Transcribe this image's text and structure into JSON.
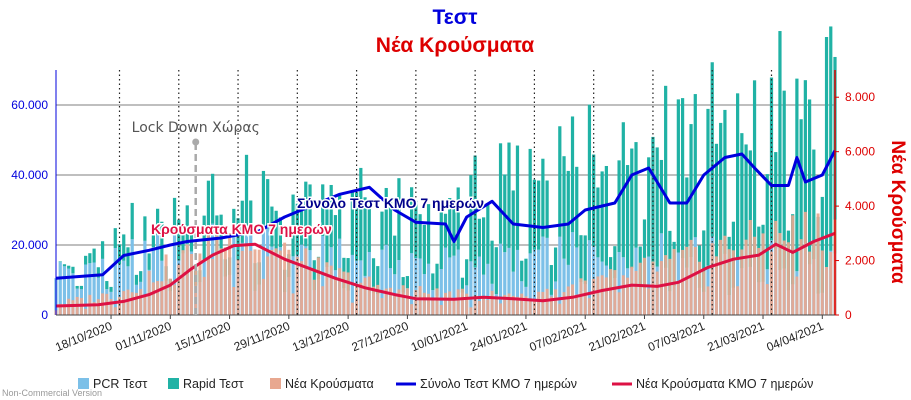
{
  "credit": "Non-Commercial Version",
  "chart_data": {
    "type": "bar",
    "title": "Τεστ",
    "subtitle": "Νέα Κρούσματα",
    "title_color": "#0000dd",
    "subtitle_color": "#dd0000",
    "y_left_label": "",
    "y_right_label": "Νέα Κρούσματα",
    "y_left_color": "#0000dd",
    "y_right_color": "#dd0000",
    "ylim_left": [
      0,
      70000
    ],
    "ylim_right": [
      0,
      9000
    ],
    "y_left_ticks": [
      {
        "value": 0,
        "label": "0"
      },
      {
        "value": 20000,
        "label": "20.000"
      },
      {
        "value": 40000,
        "label": "40.000"
      },
      {
        "value": 60000,
        "label": "60.000"
      }
    ],
    "y_right_ticks": [
      {
        "value": 0,
        "label": "0"
      },
      {
        "value": 2000,
        "label": "2.000"
      },
      {
        "value": 4000,
        "label": "4.000"
      },
      {
        "value": 6000,
        "label": "6.000"
      },
      {
        "value": 8000,
        "label": "8.000"
      }
    ],
    "x_start": "2020-10-05",
    "x_end": "2021-04-07",
    "x_ticks": [
      "18/10/2020",
      "01/11/2020",
      "15/11/2020",
      "29/11/2020",
      "13/12/2020",
      "27/12/2020",
      "10/01/2021",
      "24/01/2021",
      "07/02/2021",
      "21/02/2021",
      "07/03/2021",
      "21/03/2021",
      "04/04/2021"
    ],
    "x_tick_dates": [
      "2020-10-18",
      "2020-11-01",
      "2020-11-15",
      "2020-11-29",
      "2020-12-13",
      "2020-12-27",
      "2021-01-10",
      "2021-01-24",
      "2021-02-07",
      "2021-02-21",
      "2021-03-07",
      "2021-03-21",
      "2021-04-04"
    ],
    "vertical_markers": [
      "2020-10-20",
      "2020-11-03",
      "2020-11-17",
      "2020-12-01",
      "2020-12-15",
      "2020-12-29",
      "2021-01-12",
      "2021-01-26",
      "2021-02-09",
      "2021-02-23",
      "2021-03-09",
      "2021-03-23"
    ],
    "annotations": [
      {
        "text": "Lock Down Χώρας",
        "date": "2020-11-07",
        "color": "#555555"
      },
      {
        "text": "Σύνολο Τεστ ΚΜΟ 7 ημερών",
        "color": "#00008b"
      },
      {
        "text": "Κρούσματα ΚΜΟ 7 ημερών",
        "color": "#dd1144"
      }
    ],
    "series": [
      {
        "name": "PCR Τεστ",
        "kind": "bar",
        "axis": "left",
        "color": "#7cc0e8",
        "anchors": [
          [
            "2020-10-05",
            13000
          ],
          [
            "2020-10-20",
            16000
          ],
          [
            "2020-11-01",
            19000
          ],
          [
            "2020-11-15",
            21000
          ],
          [
            "2020-12-01",
            19000
          ],
          [
            "2020-12-15",
            16000
          ],
          [
            "2021-01-01",
            15000
          ],
          [
            "2021-01-15",
            16000
          ],
          [
            "2021-02-01",
            18000
          ],
          [
            "2021-02-15",
            19000
          ],
          [
            "2021-03-01",
            18000
          ],
          [
            "2021-03-15",
            17000
          ],
          [
            "2021-04-07",
            16000
          ]
        ]
      },
      {
        "name": "Rapid Τεστ",
        "kind": "bar",
        "axis": "left",
        "color": "#20b2a5",
        "anchors": [
          [
            "2020-10-05",
            0
          ],
          [
            "2020-10-20",
            5000
          ],
          [
            "2020-11-01",
            9000
          ],
          [
            "2020-11-15",
            12000
          ],
          [
            "2020-12-01",
            13000
          ],
          [
            "2020-12-15",
            17000
          ],
          [
            "2021-01-01",
            12000
          ],
          [
            "2021-01-15",
            20000
          ],
          [
            "2021-02-01",
            25000
          ],
          [
            "2021-02-15",
            33000
          ],
          [
            "2021-03-01",
            37000
          ],
          [
            "2021-03-15",
            35000
          ],
          [
            "2021-04-07",
            47000
          ]
        ]
      },
      {
        "name": "Νέα Κρούσματα",
        "kind": "bar",
        "axis": "right",
        "color": "#e8a890",
        "anchors": [
          [
            "2020-10-05",
            400
          ],
          [
            "2020-10-20",
            800
          ],
          [
            "2020-11-01",
            1800
          ],
          [
            "2020-11-10",
            2600
          ],
          [
            "2020-11-18",
            2800
          ],
          [
            "2020-12-01",
            2000
          ],
          [
            "2020-12-15",
            1200
          ],
          [
            "2021-01-01",
            800
          ],
          [
            "2021-01-15",
            700
          ],
          [
            "2021-02-01",
            900
          ],
          [
            "2021-02-15",
            1400
          ],
          [
            "2021-03-01",
            2000
          ],
          [
            "2021-03-15",
            2600
          ],
          [
            "2021-04-07",
            3300
          ]
        ]
      },
      {
        "name": "Σύνολο Τεστ ΚΜΟ 7 ημερών",
        "kind": "line",
        "axis": "left",
        "color": "#0000dd",
        "points": [
          [
            "2020-10-05",
            10500
          ],
          [
            "2020-10-16",
            11500
          ],
          [
            "2020-10-21",
            17000
          ],
          [
            "2020-10-27",
            18500
          ],
          [
            "2020-11-01",
            20000
          ],
          [
            "2020-11-05",
            21000
          ],
          [
            "2020-11-13",
            22000
          ],
          [
            "2020-11-22",
            24000
          ],
          [
            "2020-11-28",
            28000
          ],
          [
            "2020-12-04",
            31000
          ],
          [
            "2020-12-11",
            34500
          ],
          [
            "2020-12-18",
            36500
          ],
          [
            "2020-12-24",
            30000
          ],
          [
            "2020-12-29",
            26500
          ],
          [
            "2021-01-05",
            26000
          ],
          [
            "2021-01-07",
            21000
          ],
          [
            "2021-01-10",
            28000
          ],
          [
            "2021-01-16",
            32500
          ],
          [
            "2021-01-21",
            26000
          ],
          [
            "2021-01-28",
            25000
          ],
          [
            "2021-02-03",
            26000
          ],
          [
            "2021-02-07",
            30000
          ],
          [
            "2021-02-14",
            32000
          ],
          [
            "2021-02-18",
            40000
          ],
          [
            "2021-02-22",
            42000
          ],
          [
            "2021-02-27",
            32000
          ],
          [
            "2021-03-03",
            32000
          ],
          [
            "2021-03-07",
            40000
          ],
          [
            "2021-03-12",
            45000
          ],
          [
            "2021-03-16",
            46000
          ],
          [
            "2021-03-19",
            42000
          ],
          [
            "2021-03-23",
            37000
          ],
          [
            "2021-03-27",
            37000
          ],
          [
            "2021-03-29",
            45000
          ],
          [
            "2021-03-31",
            38000
          ],
          [
            "2021-04-04",
            40000
          ],
          [
            "2021-04-07",
            47000
          ]
        ]
      },
      {
        "name": "Νέα Κρούσματα ΚΜΟ 7 ημερών",
        "kind": "line",
        "axis": "right",
        "color": "#dd1144",
        "points": [
          [
            "2020-10-05",
            330
          ],
          [
            "2020-10-15",
            380
          ],
          [
            "2020-10-21",
            500
          ],
          [
            "2020-10-27",
            750
          ],
          [
            "2020-11-01",
            1100
          ],
          [
            "2020-11-06",
            1700
          ],
          [
            "2020-11-11",
            2200
          ],
          [
            "2020-11-16",
            2550
          ],
          [
            "2020-11-21",
            2600
          ],
          [
            "2020-11-28",
            2050
          ],
          [
            "2020-12-04",
            1700
          ],
          [
            "2020-12-10",
            1350
          ],
          [
            "2020-12-17",
            1000
          ],
          [
            "2020-12-24",
            750
          ],
          [
            "2020-12-29",
            600
          ],
          [
            "2021-01-07",
            580
          ],
          [
            "2021-01-14",
            650
          ],
          [
            "2021-01-21",
            600
          ],
          [
            "2021-01-28",
            520
          ],
          [
            "2021-02-04",
            650
          ],
          [
            "2021-02-11",
            900
          ],
          [
            "2021-02-18",
            1100
          ],
          [
            "2021-02-24",
            1050
          ],
          [
            "2021-03-01",
            1200
          ],
          [
            "2021-03-08",
            1750
          ],
          [
            "2021-03-14",
            2050
          ],
          [
            "2021-03-20",
            2200
          ],
          [
            "2021-03-24",
            2600
          ],
          [
            "2021-03-28",
            2300
          ],
          [
            "2021-04-02",
            2700
          ],
          [
            "2021-04-07",
            3000
          ]
        ]
      }
    ],
    "legend": [
      {
        "label": "PCR Τεστ",
        "color": "#7cc0e8",
        "shape": "square"
      },
      {
        "label": "Rapid Τεστ",
        "color": "#20b2a5",
        "shape": "square"
      },
      {
        "label": "Νέα Κρούσματα",
        "color": "#e8a890",
        "shape": "square"
      },
      {
        "label": "Σύνολο Τεστ ΚΜΟ 7 ημερών",
        "color": "#0000dd",
        "shape": "line"
      },
      {
        "label": "Νέα Κρούσματα ΚΜΟ 7 ημερών",
        "color": "#dd1144",
        "shape": "line"
      }
    ]
  }
}
